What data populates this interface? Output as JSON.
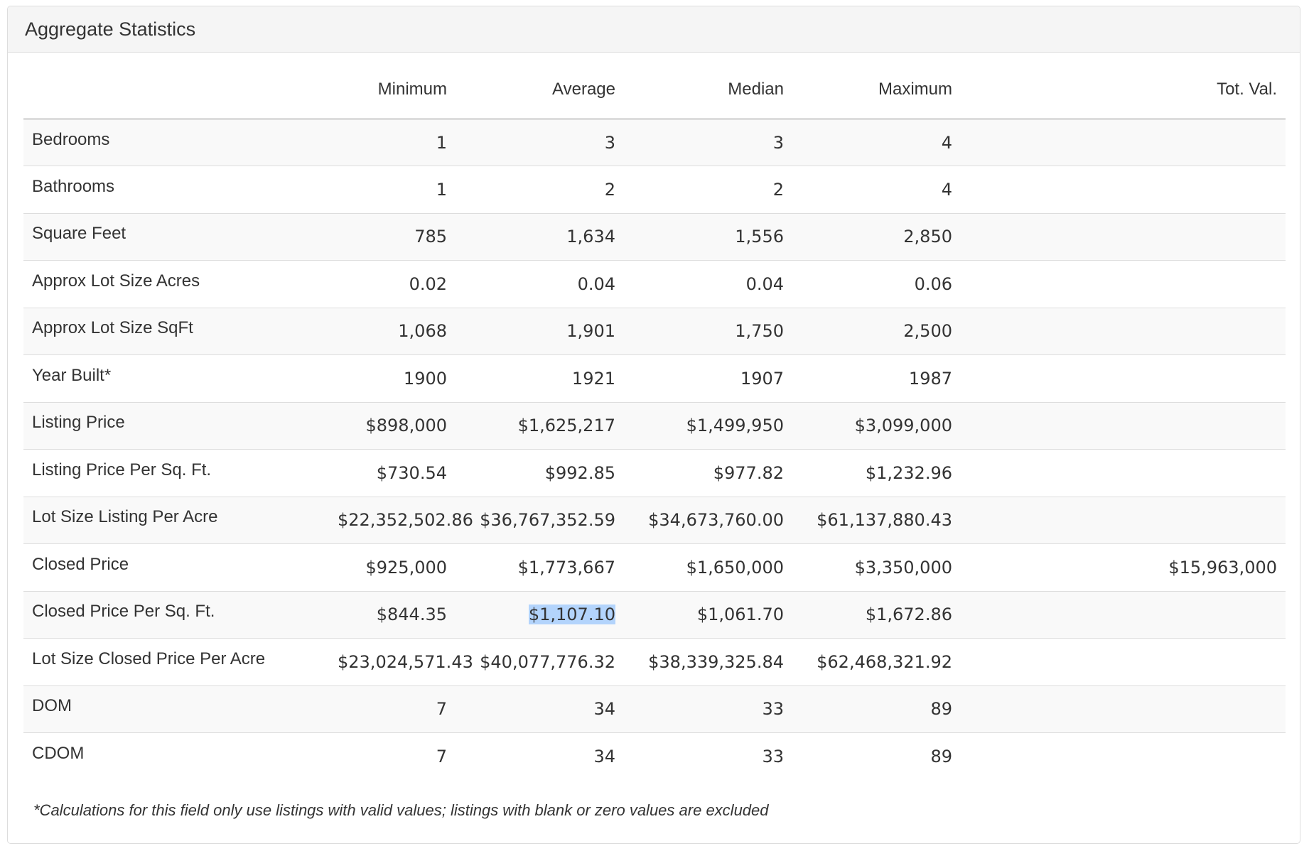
{
  "panel": {
    "title": "Aggregate Statistics"
  },
  "table": {
    "headers": [
      "",
      "Minimum",
      "Average",
      "Median",
      "Maximum",
      "Tot. Val."
    ],
    "rows": [
      {
        "label": "Bedrooms",
        "min": "1",
        "avg": "3",
        "median": "3",
        "max": "4",
        "total": ""
      },
      {
        "label": "Bathrooms",
        "min": "1",
        "avg": "2",
        "median": "2",
        "max": "4",
        "total": ""
      },
      {
        "label": "Square Feet",
        "min": "785",
        "avg": "1,634",
        "median": "1,556",
        "max": "2,850",
        "total": ""
      },
      {
        "label": "Approx Lot Size Acres",
        "min": "0.02",
        "avg": "0.04",
        "median": "0.04",
        "max": "0.06",
        "total": ""
      },
      {
        "label": "Approx Lot Size SqFt",
        "min": "1,068",
        "avg": "1,901",
        "median": "1,750",
        "max": "2,500",
        "total": ""
      },
      {
        "label": "Year Built*",
        "min": "1900",
        "avg": "1921",
        "median": "1907",
        "max": "1987",
        "total": ""
      },
      {
        "label": "Listing Price",
        "min": "$898,000",
        "avg": "$1,625,217",
        "median": "$1,499,950",
        "max": "$3,099,000",
        "total": ""
      },
      {
        "label": "Listing Price Per Sq. Ft.",
        "min": "$730.54",
        "avg": "$992.85",
        "median": "$977.82",
        "max": "$1,232.96",
        "total": ""
      },
      {
        "label": "Lot Size Listing Per Acre",
        "min": "$22,352,502.86",
        "avg": "$36,767,352.59",
        "median": "$34,673,760.00",
        "max": "$61,137,880.43",
        "total": ""
      },
      {
        "label": "Closed Price",
        "min": "$925,000",
        "avg": "$1,773,667",
        "median": "$1,650,000",
        "max": "$3,350,000",
        "total": "$15,963,000"
      },
      {
        "label": "Closed Price Per Sq. Ft.",
        "min": "$844.35",
        "avg": "$1,107.10",
        "median": "$1,061.70",
        "max": "$1,672.86",
        "total": ""
      },
      {
        "label": "Lot Size Closed Price Per Acre",
        "min": "$23,024,571.43",
        "avg": "$40,077,776.32",
        "median": "$38,339,325.84",
        "max": "$62,468,321.92",
        "total": ""
      },
      {
        "label": "DOM",
        "min": "7",
        "avg": "34",
        "median": "33",
        "max": "89",
        "total": ""
      },
      {
        "label": "CDOM",
        "min": "7",
        "avg": "34",
        "median": "33",
        "max": "89",
        "total": ""
      }
    ]
  },
  "footnote": "*Calculations for this field only use listings with valid values; listings with blank or zero values are excluded",
  "selection": {
    "row": 10,
    "column": "avg",
    "color": "#b3d4fc"
  }
}
